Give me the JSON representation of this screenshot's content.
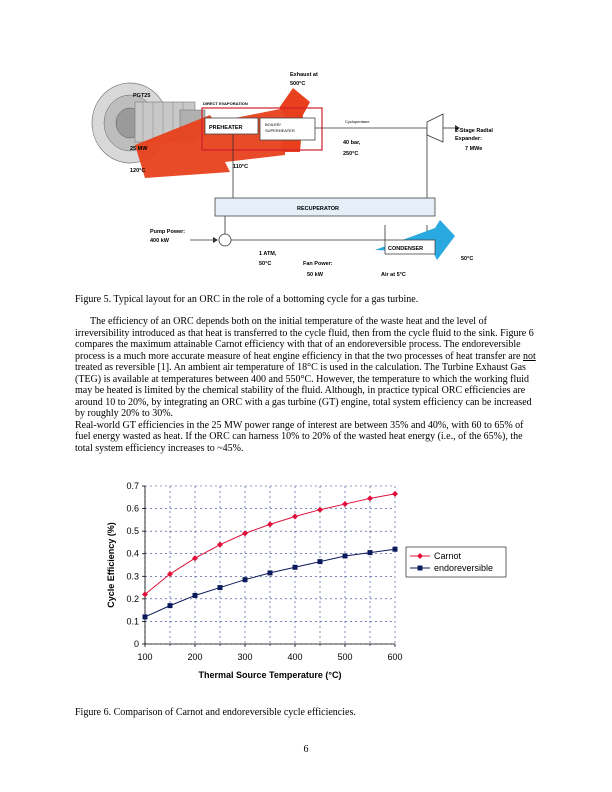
{
  "figure5": {
    "caption": "Figure 5. Typical layout for an ORC in the role of a bottoming cycle for a gas turbine.",
    "labels": {
      "pgt25": "PGT25",
      "exhaust": "Exhaust at",
      "exhaust_temp": "500°C",
      "direct_evaporation": "DIRECT EVAPORATION",
      "preheater": "PREHEATER",
      "boiler": "BOILER/",
      "superheater": "SUPERHEATER",
      "cyclopentane": "Cyclopentane",
      "radial_expander_1": "2-Stage Radial",
      "radial_expander_2": "Expander:",
      "power_out": "7 MWe",
      "gt_power": "25 MW",
      "temp_120": "120°C",
      "temp_110": "110°C",
      "pressure": "40 bar,",
      "temp_250": "250°C",
      "recuperator": "RECUPERATOR",
      "pump_power": "Pump Power:",
      "pump_kw": "400 kW",
      "atm": "1 ATM,",
      "temp_50": "50°C",
      "fan_power": "Fan Power:",
      "fan_kw": "50 kW",
      "condenser": "CONDENSER",
      "air": "Air at 5°C",
      "air_out": "50°C"
    }
  },
  "body": {
    "paragraph1": "The efficiency of an ORC depends both on the initial temperature of the waste heat and the level of irreversibility introduced as that heat is transferred to the cycle fluid, then from the cycle fluid to the sink. Figure 6 compares the maximum attainable Carnot efficiency with that of an endoreversible process. The endoreversible process is a much more accurate measure of heat engine efficiency in that the two processes of heat transfer are",
    "not": "not",
    "paragraph1_end": "treated as reversible [1]. An ambient air temperature of 18°C is used in the calculation. The Turbine Exhaust Gas (TEG) is available at temperatures between 400 and 550°C. However, the temperature to which the working fluid may be heated is limited by the chemical stability of the fluid. Although, in practice typical ORC efficiencies are around 10 to 20%, by integrating an ORC with a gas turbine (GT) engine, total system efficiency can be increased by roughly 20% to 30%.",
    "paragraph2": "Real-world GT efficiencies in the 25 MW power range of interest are between 35% and 40%, with 60 to 65% of fuel energy wasted as heat. If the ORC can harness 10% to 20% of the wasted heat energy (i.e., of the 65%), the total system efficiency increases to ~45%."
  },
  "chart_data": {
    "type": "line",
    "x": [
      100,
      150,
      200,
      250,
      300,
      350,
      400,
      450,
      500,
      550,
      600
    ],
    "series": [
      {
        "name": "Carnot",
        "color": "#e0103a",
        "marker": "diamond",
        "values": [
          0.22,
          0.31,
          0.38,
          0.44,
          0.49,
          0.53,
          0.565,
          0.595,
          0.62,
          0.645,
          0.665
        ]
      },
      {
        "name": "endoreversible",
        "color": "#0a1a5c",
        "marker": "square",
        "values": [
          0.12,
          0.17,
          0.215,
          0.25,
          0.285,
          0.315,
          0.34,
          0.365,
          0.39,
          0.405,
          0.42
        ]
      }
    ],
    "xlabel": "Thermal Source Temperature (°C)",
    "ylabel": "Cycle Efficiency (%)",
    "xlim": [
      100,
      600
    ],
    "ylim": [
      0,
      0.7
    ],
    "xticks": [
      100,
      200,
      300,
      400,
      500,
      600
    ],
    "yticks": [
      0,
      0.1,
      0.2,
      0.3,
      0.4,
      0.5,
      0.6,
      0.7
    ],
    "xtick_labels": [
      "100",
      "200",
      "300",
      "400",
      "500",
      "600"
    ],
    "ytick_labels": [
      "0",
      "0.1",
      "0.2",
      "0.3",
      "0.4",
      "0.5",
      "0.6",
      "0.7"
    ],
    "grid": true,
    "legend": "right"
  },
  "figure6": {
    "caption": "Figure 6. Comparison of Carnot and endoreversible cycle efficiencies."
  },
  "page_number": "6"
}
